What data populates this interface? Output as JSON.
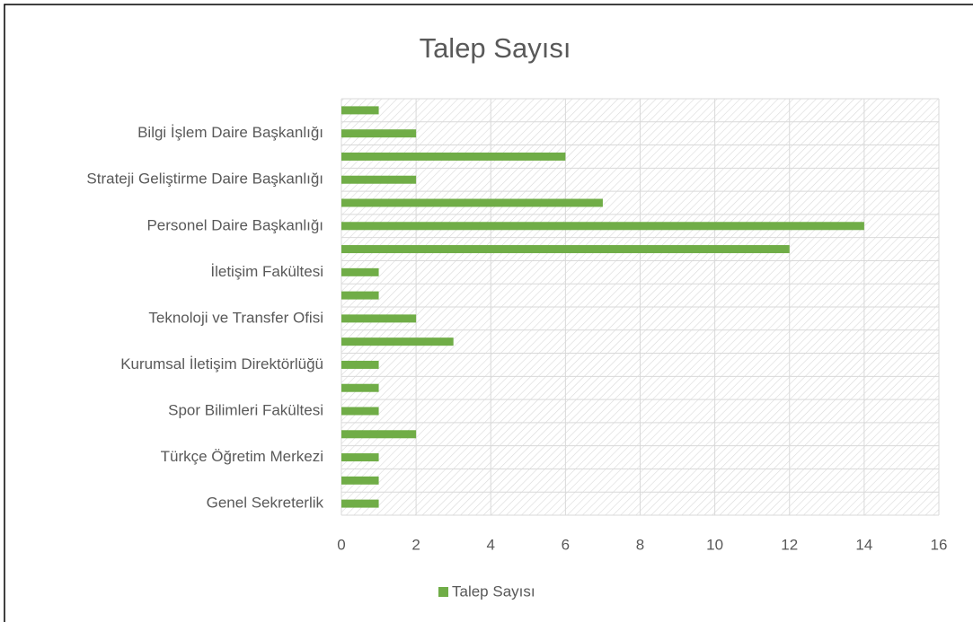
{
  "chart_data": {
    "type": "hbar",
    "title": "Talep Sayısı",
    "categories": [
      "Genel Sekreterlik",
      null,
      "Türkçe Öğretim Merkezi",
      null,
      "Spor Bilimleri Fakültesi",
      null,
      "Kurumsal İletişim Direktörlüğü",
      null,
      "Teknoloji ve Transfer Ofisi",
      null,
      "İletişim Fakültesi",
      null,
      "Personel Daire Başkanlığı",
      null,
      "Strateji Geliştirme Daire Başkanlığı",
      null,
      "Bilgi İşlem Daire Başkanlığı",
      null
    ],
    "series": [
      {
        "name": "Talep Sayısı",
        "color": "#70ad47",
        "values": [
          1,
          1,
          1,
          2,
          1,
          1,
          1,
          3,
          2,
          1,
          1,
          12,
          14,
          7,
          2,
          6,
          2,
          1
        ]
      }
    ],
    "xlim": [
      0,
      16
    ],
    "xticks": [
      0,
      2,
      4,
      6,
      8,
      10,
      12,
      14,
      16
    ],
    "grid": true,
    "legend": "bottom"
  }
}
